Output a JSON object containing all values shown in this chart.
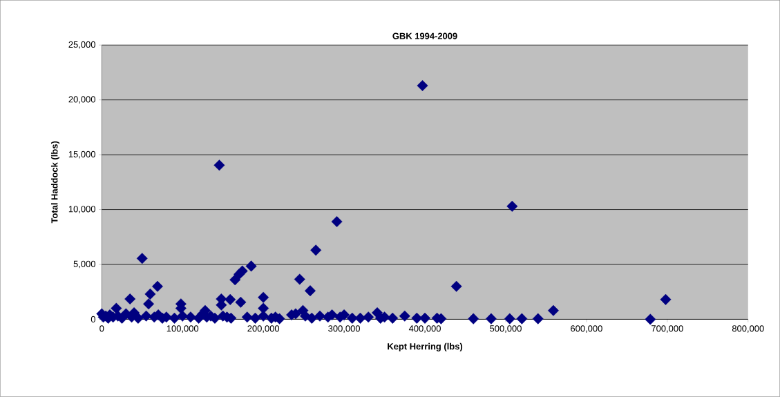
{
  "chart_data": {
    "type": "scatter",
    "title": "GBK 1994-2009",
    "xlabel": "Kept Herring (lbs)",
    "ylabel": "Total Haddock (lbs)",
    "series": [
      {
        "color": "#000080",
        "x": [
          0,
          2000,
          5000,
          8000,
          10000,
          14000,
          18000,
          20000,
          25000,
          30000,
          35000,
          37000,
          40000,
          45000,
          50000,
          55000,
          58000,
          60000,
          65000,
          69000,
          70000,
          75000,
          80000,
          90000,
          98000,
          98000,
          100000,
          110000,
          120000,
          125000,
          128000,
          130000,
          135000,
          140000,
          145500,
          148000,
          148000,
          150000,
          155000,
          159000,
          160000,
          165000,
          170000,
          172000,
          174000,
          180000,
          185000,
          190000,
          200000,
          200000,
          200000,
          210000,
          215000,
          220000,
          235000,
          240000,
          245000,
          249000,
          252000,
          258000,
          260000,
          265000,
          270000,
          280000,
          285000,
          291000,
          295000,
          300000,
          310000,
          320000,
          330000,
          341000,
          345000,
          350000,
          360000,
          375000,
          390000,
          397000,
          400000,
          415000,
          420000,
          439000,
          460000,
          482000,
          505000,
          508000,
          520000,
          540000,
          559000,
          679000,
          698000
        ],
        "values": [
          500,
          200,
          300,
          100,
          400,
          200,
          1000,
          300,
          100,
          500,
          1850,
          200,
          600,
          100,
          5550,
          300,
          1400,
          2300,
          200,
          3000,
          400,
          100,
          200,
          100,
          1400,
          1000,
          300,
          200,
          100,
          500,
          800,
          200,
          300,
          100,
          14050,
          1850,
          1300,
          300,
          200,
          1800,
          100,
          3600,
          4100,
          1550,
          4400,
          200,
          4850,
          100,
          2000,
          1000,
          300,
          100,
          200,
          50,
          400,
          500,
          3650,
          800,
          300,
          2600,
          100,
          6300,
          300,
          200,
          400,
          8900,
          200,
          400,
          100,
          100,
          200,
          600,
          100,
          200,
          100,
          300,
          100,
          21300,
          100,
          100,
          50,
          3000,
          50,
          50,
          50,
          10300,
          50,
          50,
          800,
          0,
          1800
        ]
      }
    ],
    "xlim": [
      0,
      800000
    ],
    "ylim": [
      0,
      25000
    ],
    "xticks": [
      {
        "value": 0,
        "label": "0"
      },
      {
        "value": 100000,
        "label": "100,000"
      },
      {
        "value": 200000,
        "label": "200,000"
      },
      {
        "value": 300000,
        "label": "300,000"
      },
      {
        "value": 400000,
        "label": "400,000"
      },
      {
        "value": 500000,
        "label": "500,000"
      },
      {
        "value": 600000,
        "label": "600,000"
      },
      {
        "value": 700000,
        "label": "700,000"
      },
      {
        "value": 800000,
        "label": "800,000"
      }
    ],
    "yticks": [
      {
        "value": 0,
        "label": "0"
      },
      {
        "value": 5000,
        "label": "5,000"
      },
      {
        "value": 10000,
        "label": "10,000"
      },
      {
        "value": 15000,
        "label": "15,000"
      },
      {
        "value": 20000,
        "label": "20,000"
      },
      {
        "value": 25000,
        "label": "25,000"
      }
    ],
    "grid": "y",
    "marker": "diamond"
  }
}
